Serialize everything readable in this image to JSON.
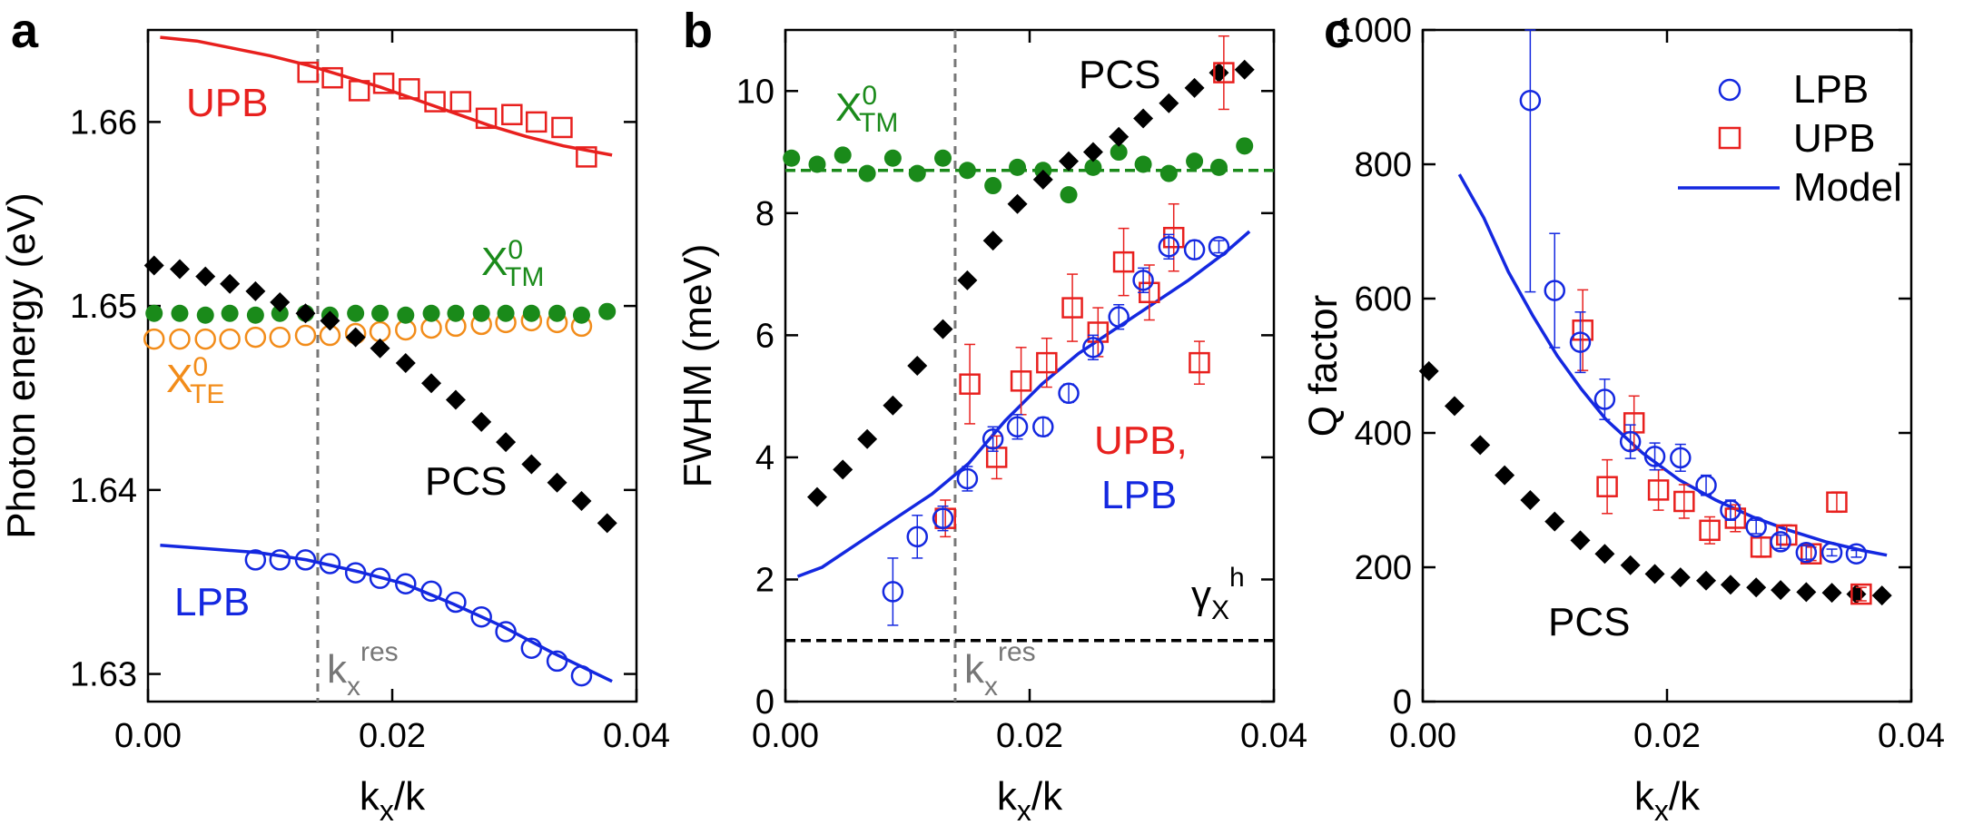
{
  "colors": {
    "upb": "#e8201e",
    "lpb": "#1428e0",
    "pcs": "#000000",
    "xtm": "#1a8a1a",
    "xte": "#f28c1a",
    "kres": "#777777"
  },
  "chart_data": [
    {
      "panel": "a",
      "type": "scatter",
      "xlabel": "k_x/k",
      "ylabel": "Photon energy (eV)",
      "xlim": [
        0,
        0.04
      ],
      "ylim": [
        1.6285,
        1.665
      ],
      "xticks": [
        "0.00",
        "0.02",
        "0.04"
      ],
      "yticks": [
        "1.63",
        "1.64",
        "1.65",
        "1.66"
      ],
      "kres_x": 0.0139,
      "series": [
        {
          "name": "UPB",
          "marker": "open-square",
          "x": [
            0.0131,
            0.0151,
            0.0173,
            0.0193,
            0.0214,
            0.0235,
            0.0256,
            0.0277,
            0.0298,
            0.0318,
            0.0339,
            0.0359
          ],
          "y": [
            1.6627,
            1.6624,
            1.6617,
            1.6621,
            1.6618,
            1.6611,
            1.6611,
            1.6602,
            1.6604,
            1.66,
            1.6597,
            1.6581
          ]
        },
        {
          "name": "UPB model",
          "marker": "line",
          "x": [
            0.001,
            0.004,
            0.007,
            0.01,
            0.013,
            0.016,
            0.019,
            0.022,
            0.025,
            0.028,
            0.031,
            0.034,
            0.038
          ],
          "y": [
            1.6646,
            1.6644,
            1.664,
            1.6636,
            1.6631,
            1.6625,
            1.6619,
            1.6612,
            1.6605,
            1.6598,
            1.6592,
            1.6587,
            1.6582
          ]
        },
        {
          "name": "PCS",
          "marker": "diamond",
          "x": [
            0.0005,
            0.0026,
            0.0047,
            0.0067,
            0.0088,
            0.0108,
            0.0129,
            0.0149,
            0.017,
            0.019,
            0.0211,
            0.0232,
            0.0252,
            0.0273,
            0.0293,
            0.0314,
            0.0335,
            0.0355,
            0.0376
          ],
          "y": [
            1.6522,
            1.652,
            1.6516,
            1.6512,
            1.6508,
            1.6502,
            1.6496,
            1.6492,
            1.6483,
            1.6477,
            1.6469,
            1.6458,
            1.6449,
            1.6437,
            1.6426,
            1.6414,
            1.6404,
            1.6394,
            1.6382
          ]
        },
        {
          "name": "X0_TM",
          "marker": "filled-circle",
          "x": [
            0.0005,
            0.0026,
            0.0047,
            0.0067,
            0.0088,
            0.0108,
            0.0129,
            0.0149,
            0.017,
            0.019,
            0.0211,
            0.0232,
            0.0252,
            0.0273,
            0.0293,
            0.0314,
            0.0335,
            0.0355,
            0.0376
          ],
          "y": [
            1.6496,
            1.6496,
            1.6495,
            1.6496,
            1.6495,
            1.6496,
            1.6496,
            1.6495,
            1.6496,
            1.6496,
            1.6495,
            1.6496,
            1.6496,
            1.6496,
            1.6496,
            1.6496,
            1.6496,
            1.6495,
            1.6497
          ]
        },
        {
          "name": "X0_TE",
          "marker": "open-circle",
          "x": [
            0.0005,
            0.0026,
            0.0047,
            0.0067,
            0.0088,
            0.0108,
            0.0129,
            0.0149,
            0.017,
            0.019,
            0.0211,
            0.0232,
            0.0252,
            0.0273,
            0.0293,
            0.0314,
            0.0335,
            0.0355
          ],
          "y": [
            1.6482,
            1.6482,
            1.6482,
            1.6482,
            1.6483,
            1.6483,
            1.6484,
            1.6484,
            1.6485,
            1.6486,
            1.6487,
            1.6488,
            1.6489,
            1.649,
            1.6491,
            1.6492,
            1.6491,
            1.6489
          ]
        },
        {
          "name": "LPB",
          "marker": "open-circle",
          "x": [
            0.0088,
            0.0108,
            0.0129,
            0.0149,
            0.017,
            0.019,
            0.0211,
            0.0232,
            0.0252,
            0.0273,
            0.0293,
            0.0314,
            0.0335,
            0.0355
          ],
          "y": [
            1.6362,
            1.6362,
            1.6362,
            1.636,
            1.6355,
            1.6352,
            1.6349,
            1.6345,
            1.6339,
            1.6331,
            1.6323,
            1.6314,
            1.6307,
            1.6299
          ]
        },
        {
          "name": "LPB model",
          "marker": "line",
          "x": [
            0.001,
            0.005,
            0.009,
            0.013,
            0.017,
            0.021,
            0.025,
            0.029,
            0.033,
            0.038
          ],
          "y": [
            1.637,
            1.6368,
            1.6366,
            1.6362,
            1.6356,
            1.6349,
            1.6338,
            1.6326,
            1.6312,
            1.6296
          ]
        }
      ],
      "labels": {
        "upb": "UPB",
        "pcs": "PCS",
        "lpb": "LPB",
        "xtm_main": "X",
        "xtm_sup": "0",
        "xtm_sub": "TM",
        "xte_main": "X",
        "xte_sup": "0",
        "xte_sub": "TE",
        "kres_main": "k",
        "kres_sub": "x",
        "kres_sup": "res"
      }
    },
    {
      "panel": "b",
      "type": "scatter",
      "xlabel": "k_x/k",
      "ylabel": "FWHM (meV)",
      "xlim": [
        0,
        0.04
      ],
      "ylim": [
        0,
        11
      ],
      "xticks": [
        "0.00",
        "0.02",
        "0.04"
      ],
      "yticks": [
        "0",
        "2",
        "4",
        "6",
        "8",
        "10"
      ],
      "kres_x": 0.0139,
      "xtm_level": 8.7,
      "gamma_level": 1.0,
      "series": [
        {
          "name": "PCS",
          "marker": "diamond",
          "x": [
            0.0026,
            0.0047,
            0.0067,
            0.0088,
            0.0108,
            0.0129,
            0.0149,
            0.017,
            0.019,
            0.0211,
            0.0232,
            0.0252,
            0.0273,
            0.0293,
            0.0314,
            0.0335,
            0.0355,
            0.0376
          ],
          "y": [
            3.35,
            3.8,
            4.3,
            4.85,
            5.5,
            6.1,
            6.9,
            7.55,
            8.15,
            8.55,
            8.85,
            9.0,
            9.25,
            9.55,
            9.8,
            10.05,
            10.3,
            10.35
          ]
        },
        {
          "name": "X0_TM",
          "marker": "filled-circle",
          "x": [
            0.0005,
            0.0026,
            0.0047,
            0.0067,
            0.0088,
            0.0108,
            0.0129,
            0.0149,
            0.017,
            0.019,
            0.0211,
            0.0232,
            0.0252,
            0.0273,
            0.0293,
            0.0314,
            0.0335,
            0.0355,
            0.0376
          ],
          "y": [
            8.9,
            8.8,
            8.95,
            8.65,
            8.9,
            8.65,
            8.9,
            8.7,
            8.45,
            8.75,
            8.7,
            8.3,
            8.75,
            9.0,
            8.8,
            8.65,
            8.85,
            8.75,
            9.1
          ]
        },
        {
          "name": "LPB",
          "marker": "open-circle",
          "x": [
            0.0088,
            0.0108,
            0.0129,
            0.0149,
            0.017,
            0.019,
            0.0211,
            0.0232,
            0.0252,
            0.0273,
            0.0293,
            0.0314,
            0.0335,
            0.0355
          ],
          "y": [
            1.8,
            2.7,
            3.0,
            3.65,
            4.3,
            4.5,
            4.5,
            5.05,
            5.8,
            6.3,
            6.9,
            7.45,
            7.4,
            7.45
          ],
          "err": [
            0.55,
            0.35,
            0.2,
            0.2,
            0.2,
            0.2,
            0.15,
            0.15,
            0.2,
            0.2,
            0.2,
            0.2,
            0.15,
            0.1
          ]
        },
        {
          "name": "UPB",
          "marker": "open-square",
          "x": [
            0.0131,
            0.0151,
            0.0173,
            0.0193,
            0.0214,
            0.0235,
            0.0256,
            0.0277,
            0.0298,
            0.0318,
            0.0339,
            0.0359
          ],
          "y": [
            3.0,
            5.2,
            4.0,
            5.25,
            5.55,
            6.45,
            6.05,
            7.2,
            6.7,
            7.6,
            5.55,
            10.3
          ],
          "err": [
            0.3,
            0.65,
            0.35,
            0.55,
            0.4,
            0.55,
            0.4,
            0.55,
            0.45,
            0.55,
            0.35,
            0.6
          ]
        },
        {
          "name": "Model",
          "marker": "line",
          "x": [
            0.001,
            0.003,
            0.006,
            0.009,
            0.012,
            0.015,
            0.018,
            0.021,
            0.024,
            0.027,
            0.03,
            0.033,
            0.036,
            0.038
          ],
          "y": [
            2.05,
            2.2,
            2.6,
            3.0,
            3.4,
            3.9,
            4.6,
            5.2,
            5.7,
            6.1,
            6.5,
            6.9,
            7.35,
            7.7
          ]
        }
      ],
      "labels": {
        "pcs": "PCS",
        "upb": "UPB,",
        "lpb": "LPB",
        "xtm_main": "X",
        "xtm_sup": "0",
        "xtm_sub": "TM",
        "gamma_main": "γ",
        "gamma_sub": "X",
        "gamma_sup": "h",
        "kres_main": "k",
        "kres_sub": "x",
        "kres_sup": "res"
      }
    },
    {
      "panel": "c",
      "type": "scatter",
      "xlabel": "k_x/k",
      "ylabel": "Q factor",
      "xlim": [
        0,
        0.04
      ],
      "ylim": [
        0,
        1000
      ],
      "xticks": [
        "0.00",
        "0.02",
        "0.04"
      ],
      "yticks": [
        "0",
        "200",
        "400",
        "600",
        "800",
        "1000"
      ],
      "legend": [
        "LPB",
        "UPB",
        "Model"
      ],
      "series": [
        {
          "name": "LPB",
          "marker": "open-circle",
          "x": [
            0.0088,
            0.0108,
            0.0129,
            0.0149,
            0.017,
            0.019,
            0.0211,
            0.0232,
            0.0252,
            0.0273,
            0.0293,
            0.0314,
            0.0335,
            0.0355
          ],
          "y": [
            895,
            612,
            535,
            450,
            387,
            365,
            363,
            322,
            285,
            260,
            238,
            222,
            222,
            220
          ],
          "err_hi": [
            105,
            85,
            45,
            30,
            25,
            20,
            20,
            15,
            15,
            10,
            10,
            10,
            5,
            5
          ],
          "err_lo": [
            285,
            85,
            45,
            30,
            25,
            20,
            20,
            15,
            15,
            10,
            10,
            10,
            5,
            5
          ]
        },
        {
          "name": "UPB",
          "marker": "open-square",
          "x": [
            0.0131,
            0.0151,
            0.0173,
            0.0193,
            0.0214,
            0.0235,
            0.0256,
            0.0277,
            0.0298,
            0.0318,
            0.0339,
            0.0359
          ],
          "y": [
            553,
            320,
            415,
            315,
            298,
            255,
            273,
            230,
            248,
            220,
            297,
            160
          ],
          "err": [
            60,
            40,
            40,
            30,
            25,
            20,
            20,
            15,
            15,
            10,
            15,
            10
          ]
        },
        {
          "name": "PCS",
          "marker": "diamond",
          "x": [
            0.0005,
            0.0026,
            0.0047,
            0.0067,
            0.0088,
            0.0108,
            0.0129,
            0.0149,
            0.017,
            0.019,
            0.0211,
            0.0232,
            0.0252,
            0.0273,
            0.0293,
            0.0314,
            0.0335,
            0.0355,
            0.0376
          ],
          "y": [
            492,
            440,
            382,
            337,
            300,
            268,
            240,
            220,
            203,
            190,
            185,
            180,
            174,
            170,
            166,
            163,
            162,
            160,
            158
          ]
        },
        {
          "name": "Model",
          "marker": "line",
          "x": [
            0.003,
            0.005,
            0.007,
            0.009,
            0.011,
            0.013,
            0.015,
            0.018,
            0.021,
            0.024,
            0.027,
            0.03,
            0.033,
            0.036,
            0.038
          ],
          "y": [
            785,
            720,
            640,
            575,
            515,
            465,
            420,
            370,
            330,
            300,
            275,
            255,
            238,
            225,
            218
          ]
        }
      ],
      "labels": {
        "pcs": "PCS"
      }
    }
  ]
}
